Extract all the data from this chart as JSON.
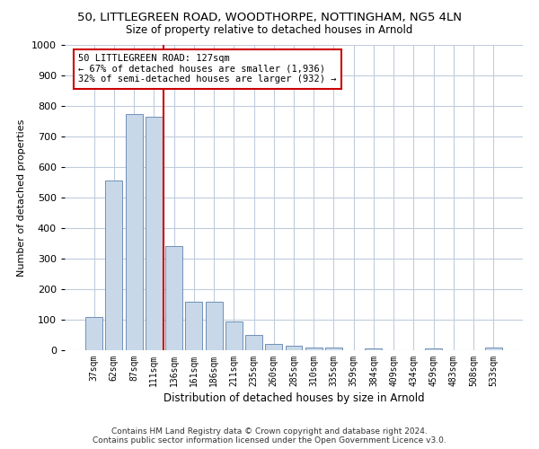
{
  "title_line1": "50, LITTLEGREEN ROAD, WOODTHORPE, NOTTINGHAM, NG5 4LN",
  "title_line2": "Size of property relative to detached houses in Arnold",
  "xlabel": "Distribution of detached houses by size in Arnold",
  "ylabel": "Number of detached properties",
  "categories": [
    "37sqm",
    "62sqm",
    "87sqm",
    "111sqm",
    "136sqm",
    "161sqm",
    "186sqm",
    "211sqm",
    "235sqm",
    "260sqm",
    "285sqm",
    "310sqm",
    "335sqm",
    "359sqm",
    "384sqm",
    "409sqm",
    "434sqm",
    "459sqm",
    "483sqm",
    "508sqm",
    "533sqm"
  ],
  "values": [
    110,
    555,
    775,
    765,
    340,
    160,
    160,
    95,
    50,
    20,
    15,
    10,
    10,
    0,
    5,
    0,
    0,
    5,
    0,
    0,
    10
  ],
  "bar_color": "#c8d8e8",
  "bar_edge_color": "#7090b8",
  "vline_x": 3.5,
  "vline_color": "#cc0000",
  "annotation_text": "50 LITTLEGREEN ROAD: 127sqm\n← 67% of detached houses are smaller (1,936)\n32% of semi-detached houses are larger (932) →",
  "annotation_box_color": "#ffffff",
  "annotation_box_edge": "#cc0000",
  "ylim": [
    0,
    1000
  ],
  "yticks": [
    0,
    100,
    200,
    300,
    400,
    500,
    600,
    700,
    800,
    900,
    1000
  ],
  "footer_line1": "Contains HM Land Registry data © Crown copyright and database right 2024.",
  "footer_line2": "Contains public sector information licensed under the Open Government Licence v3.0.",
  "bg_color": "#ffffff",
  "grid_color": "#c0ccdd",
  "title1_fontsize": 9.5,
  "title2_fontsize": 8.5,
  "ylabel_fontsize": 8,
  "xlabel_fontsize": 8.5,
  "annotation_fontsize": 7.5,
  "tick_fontsize": 7,
  "ytick_fontsize": 8,
  "footer_fontsize": 6.5
}
